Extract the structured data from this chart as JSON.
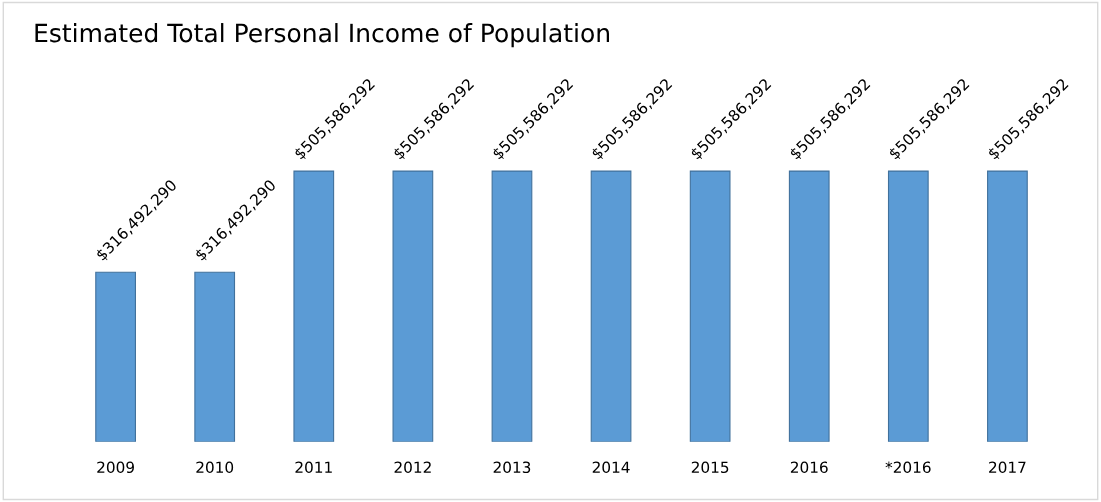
{
  "chart_data": {
    "type": "bar",
    "title": "Estimated Total Personal Income of Population",
    "categories": [
      "2009",
      "2010",
      "2011",
      "2012",
      "2013",
      "2014",
      "2015",
      "2016",
      "*2016",
      "2017"
    ],
    "values": [
      316492290,
      316492290,
      505586292,
      505586292,
      505586292,
      505586292,
      505586292,
      505586292,
      505586292,
      505586292
    ],
    "value_labels": [
      "$316,492,290",
      "$316,492,290",
      "$505,586,292",
      "$505,586,292",
      "$505,586,292",
      "$505,586,292",
      "$505,586,292",
      "$505,586,292",
      "$505,586,292",
      "$505,586,292"
    ],
    "color": "#5b9bd5",
    "grid": false,
    "legend": false
  }
}
